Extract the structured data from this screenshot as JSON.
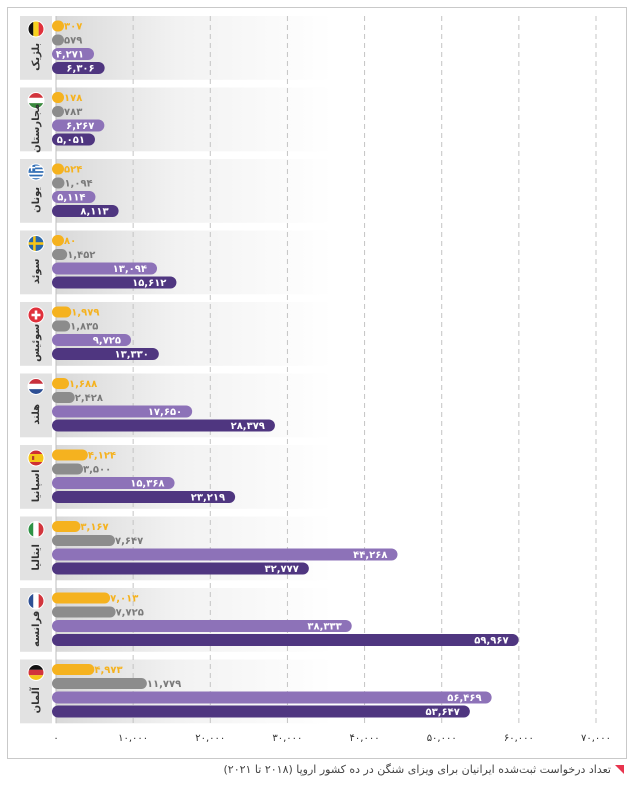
{
  "chart_data": {
    "type": "bar",
    "orientation": "horizontal",
    "caption": "تعداد درخواست ثبت‌شده ایرانیان برای ویزای شنگن در ده کشور اروپا (۲۰۱۸ تا ۲۰۲۱)",
    "xlim": [
      0,
      70000
    ],
    "x_ticks": [
      0,
      10000,
      20000,
      30000,
      40000,
      50000,
      60000,
      70000
    ],
    "x_tick_labels": [
      "۰",
      "۱۰,۰۰۰",
      "۲۰,۰۰۰",
      "۳۰,۰۰۰",
      "۴۰,۰۰۰",
      "۵۰,۰۰۰",
      "۶۰,۰۰۰",
      "۷۰,۰۰۰"
    ],
    "grid": true,
    "series_colors": [
      "#f5b21f",
      "#8c8c8c",
      "#8d72b8",
      "#4f3680"
    ],
    "categories": [
      {
        "name": "بلژیک",
        "flag": "belgium-flag",
        "values": [
          307,
          579,
          4271,
          6306
        ],
        "labels": [
          "۳۰۷",
          "۵۷۹",
          "۴,۲۷۱",
          "۶,۳۰۶"
        ]
      },
      {
        "name": "مجارستان",
        "flag": "hungary-flag",
        "values": [
          178,
          783,
          6267,
          5051
        ],
        "labels": [
          "۱۷۸",
          "۷۸۳",
          "۶,۲۶۷",
          "۵,۰۵۱"
        ]
      },
      {
        "name": "یونان",
        "flag": "greece-flag",
        "values": [
          524,
          1094,
          5114,
          8113
        ],
        "labels": [
          "۵۲۴",
          "۱,۰۹۴",
          "۵,۱۱۴",
          "۸,۱۱۳"
        ]
      },
      {
        "name": "سوئد",
        "flag": "sweden-flag",
        "values": [
          80,
          1452,
          13094,
          15612
        ],
        "labels": [
          "۸۰",
          "۱,۴۵۲",
          "۱۳,۰۹۴",
          "۱۵,۶۱۲"
        ]
      },
      {
        "name": "سوئیس",
        "flag": "switzerland-flag",
        "values": [
          1979,
          1835,
          9725,
          13330
        ],
        "labels": [
          "۱,۹۷۹",
          "۱,۸۳۵",
          "۹,۷۲۵",
          "۱۳,۳۳۰"
        ]
      },
      {
        "name": "هلند",
        "flag": "netherlands-flag",
        "values": [
          1688,
          2428,
          17650,
          28379
        ],
        "labels": [
          "۱,۶۸۸",
          "۲,۴۲۸",
          "۱۷,۶۵۰",
          "۲۸,۳۷۹"
        ]
      },
      {
        "name": "اسپانیا",
        "flag": "spain-flag",
        "values": [
          4124,
          3500,
          15368,
          23219
        ],
        "labels": [
          "۴,۱۲۴",
          "۳,۵۰۰",
          "۱۵,۳۶۸",
          "۲۳,۲۱۹"
        ]
      },
      {
        "name": "ایتالیا",
        "flag": "italy-flag",
        "values": [
          3167,
          7647,
          44268,
          32777
        ],
        "labels": [
          "۳,۱۶۷",
          "۷,۶۴۷",
          "۴۴,۲۶۸",
          "۳۲,۷۷۷"
        ]
      },
      {
        "name": "فرانسه",
        "flag": "france-flag",
        "values": [
          7013,
          7725,
          38333,
          59967
        ],
        "labels": [
          "۷,۰۱۳",
          "۷,۷۲۵",
          "۳۸,۳۳۳",
          "۵۹,۹۶۷"
        ]
      },
      {
        "name": "آلمان",
        "flag": "germany-flag",
        "values": [
          4973,
          11779,
          56469,
          53647
        ],
        "labels": [
          "۴,۹۷۳",
          "۱۱,۷۷۹",
          "۵۶,۴۶۹",
          "۵۳,۶۴۷"
        ]
      }
    ]
  }
}
